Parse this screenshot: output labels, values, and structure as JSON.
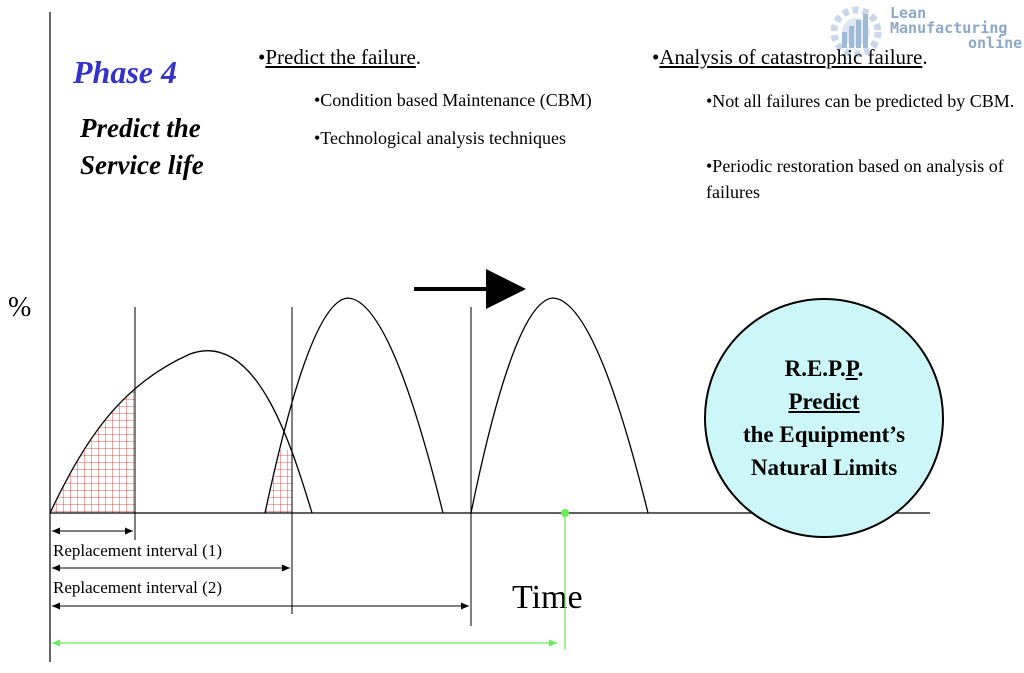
{
  "phase_title": "Phase 4",
  "subtitle_line1": "Predict the",
  "subtitle_line2": "Service life",
  "left_column": {
    "bullet": "•",
    "heading": "Predict the failure",
    "heading_suffix": ".",
    "items": [
      "•Condition based Maintenance (CBM)",
      "•Technological analysis techniques"
    ]
  },
  "right_column": {
    "bullet": "•",
    "heading": "Analysis of catastrophic failure",
    "heading_suffix": ".",
    "items": [
      "•Not all failures can be predicted by CBM.",
      "•Periodic restoration based on analysis of failures"
    ]
  },
  "y_axis_label": "%",
  "x_axis_label": "Time",
  "intervals": {
    "interval_1": "Replacement interval (1)",
    "interval_2": "Replacement interval (2)"
  },
  "circle": {
    "line1_prefix": "R.E.P.",
    "line1_underlined": "P",
    "line1_suffix": ".",
    "line2": "Predict",
    "line3": "the Equipment’s",
    "line4": "Natural Limits"
  },
  "logo": {
    "line1": "Lean",
    "line2": "Manufacturing",
    "line3": "online"
  },
  "colors": {
    "phase_title": "#3333cc",
    "circle_fill": "#cdf6f9",
    "hatch": "#e0201e",
    "green_marker": "#66ee55",
    "logo": "#8aa8c8"
  }
}
